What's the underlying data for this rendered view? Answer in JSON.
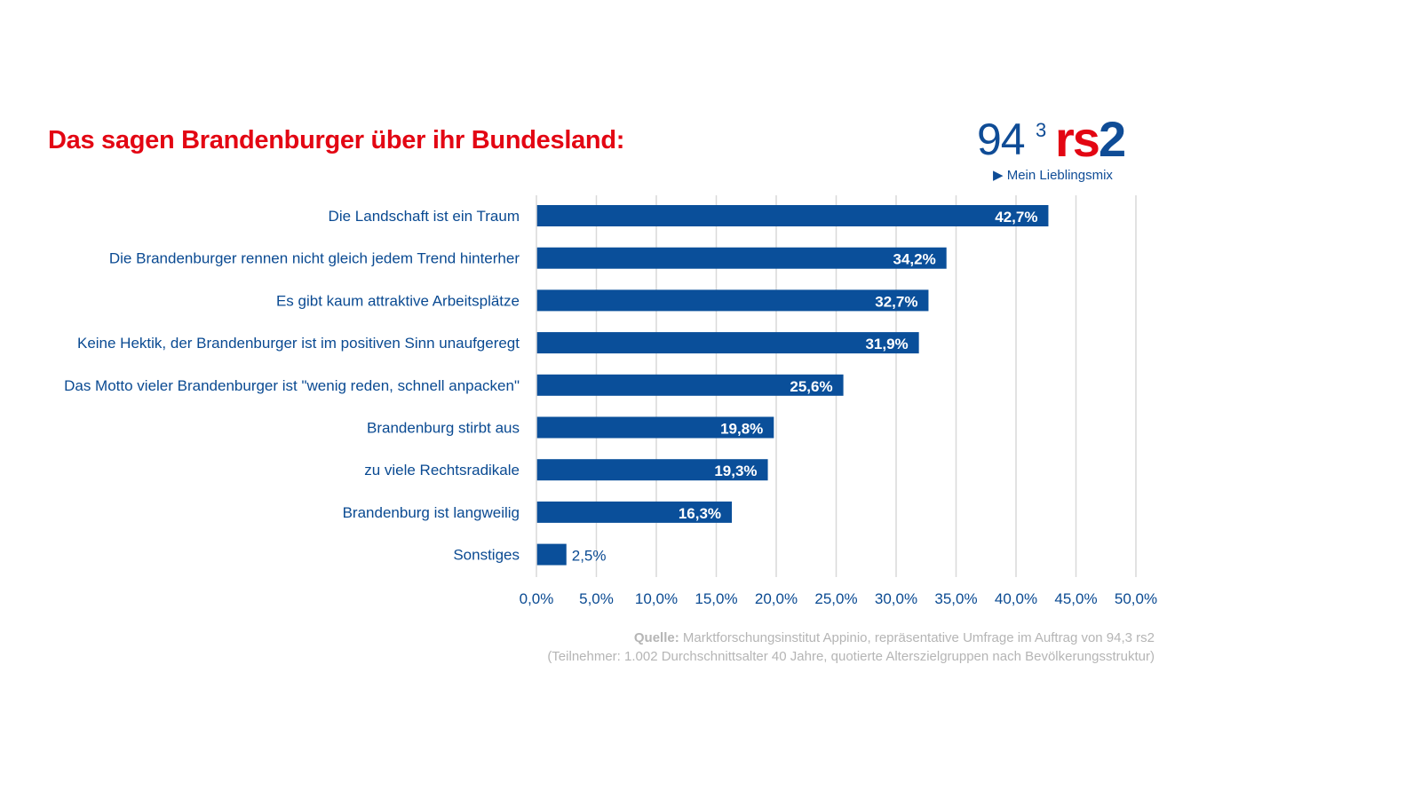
{
  "title": "Das sagen Brandenburger über ihr Bundesland:",
  "logo": {
    "number": "94",
    "superscript": "3",
    "brand_a": "rs",
    "brand_b": "2",
    "tagline": "Mein Lieblingsmix"
  },
  "source": {
    "label": "Quelle:",
    "line1": "Marktforschungsinstitut Appinio, repräsentative Umfrage im Auftrag von 94,3 rs2",
    "line2": "(Teilnehmer: 1.002 Durchschnittsalter 40 Jahre, quotierte Alterszielgruppen nach Bevölkerungsstruktur)"
  },
  "colors": {
    "bar": "#0a4f9a",
    "label": "#0a4a92",
    "title": "#e30613",
    "grid": "#d9d9d9"
  },
  "chart_data": {
    "type": "bar",
    "orientation": "horizontal",
    "categories": [
      "Die Landschaft ist ein Traum",
      "Die Brandenburger rennen nicht gleich jedem Trend hinterher",
      "Es gibt kaum attraktive Arbeitsplätze",
      "Keine Hektik, der Brandenburger ist im positiven Sinn unaufgeregt",
      "Das Motto vieler Brandenburger ist \"wenig reden, schnell anpacken\"",
      "Brandenburg stirbt aus",
      "zu viele Rechtsradikale",
      "Brandenburg ist langweilig",
      "Sonstiges"
    ],
    "values": [
      42.7,
      34.2,
      32.7,
      31.9,
      25.6,
      19.8,
      19.3,
      16.3,
      2.5
    ],
    "data_labels": [
      "42,7%",
      "34,2%",
      "32,7%",
      "31,9%",
      "25,6%",
      "19,8%",
      "19,3%",
      "16,3%",
      "2,5%"
    ],
    "xlim": [
      0,
      50
    ],
    "ticks": [
      "0,0%",
      "5,0%",
      "10,0%",
      "15,0%",
      "20,0%",
      "25,0%",
      "30,0%",
      "35,0%",
      "40,0%",
      "45,0%",
      "50,0%"
    ],
    "grid": true
  }
}
